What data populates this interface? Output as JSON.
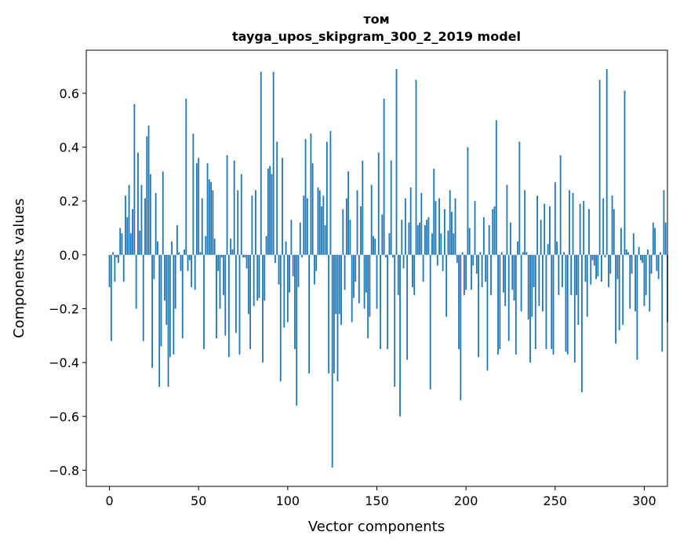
{
  "chart_data": {
    "type": "bar",
    "title_line1": "том",
    "title_line2": "tayga_upos_skipgram_300_2_2019 model",
    "xlabel": "Vector components",
    "ylabel": "Components values",
    "xlim": [
      -13,
      313
    ],
    "ylim": [
      -0.86,
      0.76
    ],
    "xticks": [
      0,
      50,
      100,
      150,
      200,
      250,
      300
    ],
    "yticks": [
      -0.8,
      -0.6,
      -0.4,
      -0.2,
      0.0,
      0.2,
      0.4,
      0.6
    ],
    "ytick_labels": [
      "−0.8",
      "−0.6",
      "−0.4",
      "−0.2",
      "0.0",
      "0.2",
      "0.4",
      "0.6"
    ],
    "bar_color": "#1f77b4",
    "values": [
      -0.12,
      -0.32,
      0.01,
      -0.1,
      -0.01,
      -0.03,
      0.1,
      0.08,
      -0.1,
      0.22,
      0.14,
      0.26,
      0.08,
      0.17,
      0.56,
      -0.2,
      0.38,
      0.09,
      0.26,
      -0.32,
      0.21,
      0.44,
      0.48,
      0.3,
      -0.42,
      -0.09,
      0.23,
      0.05,
      -0.49,
      -0.34,
      0.31,
      -0.17,
      -0.26,
      -0.49,
      -0.38,
      0.05,
      -0.37,
      -0.2,
      0.11,
      0.01,
      -0.06,
      -0.31,
      0.02,
      0.58,
      -0.06,
      -0.02,
      -0.12,
      0.45,
      -0.13,
      0.34,
      0.36,
      0.01,
      0.21,
      -0.35,
      0.07,
      0.34,
      0.28,
      0.27,
      0.24,
      0.06,
      -0.31,
      -0.06,
      -0.2,
      -0.01,
      -0.15,
      -0.3,
      0.37,
      -0.38,
      0.06,
      0.02,
      0.35,
      -0.29,
      0.24,
      -0.37,
      0.3,
      -0.01,
      -0.01,
      -0.05,
      -0.22,
      -0.35,
      0.22,
      -0.19,
      0.24,
      -0.17,
      -0.16,
      0.68,
      -0.4,
      -0.17,
      0.07,
      0.32,
      0.33,
      0.3,
      0.68,
      -0.03,
      0.42,
      -0.11,
      -0.47,
      0.36,
      -0.27,
      0.05,
      -0.25,
      -0.14,
      0.13,
      -0.08,
      -0.35,
      -0.56,
      -0.12,
      0.12,
      -0.01,
      0.22,
      0.43,
      0.21,
      -0.44,
      0.45,
      0.34,
      -0.11,
      -0.06,
      0.25,
      0.24,
      0.18,
      0.22,
      0.11,
      0.42,
      -0.44,
      0.46,
      -0.79,
      -0.44,
      -0.22,
      -0.47,
      -0.22,
      -0.26,
      0.17,
      -0.13,
      0.21,
      0.31,
      0.13,
      -0.25,
      -0.16,
      -0.1,
      0.24,
      -0.18,
      0.18,
      0.35,
      -0.2,
      -0.14,
      -0.31,
      -0.23,
      0.26,
      0.07,
      0.06,
      -0.2,
      0.38,
      -0.35,
      0.15,
      0.58,
      -0.01,
      -0.35,
      0.08,
      0.35,
      -0.01,
      -0.49,
      0.69,
      -0.15,
      -0.6,
      0.13,
      -0.05,
      0.21,
      -0.39,
      0.12,
      0.25,
      -0.12,
      -0.15,
      0.65,
      0.11,
      0.12,
      0.23,
      -0.1,
      0.11,
      0.13,
      0.14,
      -0.5,
      0.08,
      0.32,
      0.2,
      -0.04,
      0.21,
      0.08,
      -0.06,
      0.17,
      -0.23,
      0.09,
      0.24,
      0.16,
      0.08,
      0.21,
      -0.03,
      -0.35,
      -0.54,
      0.01,
      -0.15,
      -0.13,
      0.4,
      0.1,
      -0.13,
      -0.04,
      0.2,
      -0.07,
      -0.38,
      0.01,
      -0.12,
      0.14,
      -0.1,
      -0.43,
      0.11,
      -0.15,
      0.17,
      0.18,
      0.5,
      -0.37,
      -0.35,
      0.01,
      -0.14,
      -0.19,
      0.26,
      -0.32,
      0.12,
      -0.13,
      -0.17,
      -0.37,
      0.05,
      0.42,
      -0.21,
      0.01,
      0.24,
      0.01,
      -0.24,
      -0.4,
      -0.23,
      -0.12,
      -0.35,
      0.22,
      -0.19,
      0.13,
      -0.21,
      0.19,
      -0.35,
      0.04,
      0.18,
      -0.35,
      -0.37,
      0.27,
      0.05,
      -0.15,
      0.37,
      -0.12,
      0.01,
      -0.36,
      -0.37,
      0.24,
      -0.15,
      0.23,
      -0.4,
      -0.15,
      -0.26,
      0.19,
      -0.51,
      0.2,
      -0.1,
      -0.23,
      0.17,
      -0.11,
      -0.02,
      -0.04,
      -0.09,
      -0.08,
      0.65,
      -0.1,
      0.21,
      -0.01,
      0.69,
      -0.12,
      -0.07,
      0.22,
      0.17,
      -0.33,
      -0.09,
      -0.28,
      0.1,
      -0.26,
      0.61,
      0.02,
      0.01,
      -0.2,
      -0.07,
      0.08,
      -0.21,
      -0.39,
      0.03,
      -0.02,
      -0.03,
      -0.19,
      -0.15,
      0.02,
      -0.21,
      -0.07,
      0.12,
      0.1,
      -0.06,
      -0.09,
      0.01,
      -0.36,
      0.24,
      0.12,
      -0.25
    ]
  }
}
